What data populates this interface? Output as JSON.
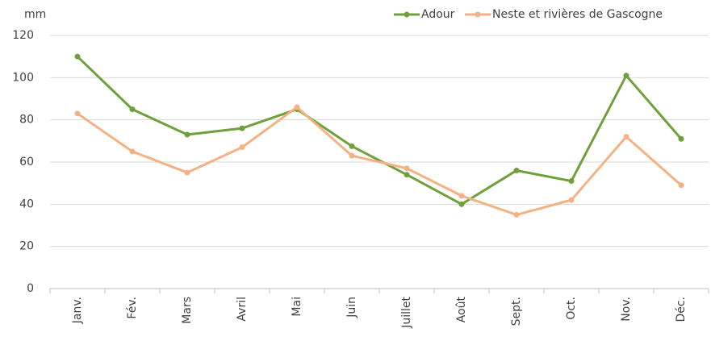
{
  "chart_data": {
    "type": "line",
    "y_label": "mm",
    "categories": [
      "Janv.",
      "Fév.",
      "Mars",
      "Avril",
      "Mai",
      "Juin",
      "Juillet",
      "Août",
      "Sept.",
      "Oct.",
      "Nov.",
      "Déc."
    ],
    "series": [
      {
        "name": "Adour",
        "color": "#70a03c",
        "values": [
          110,
          85,
          73,
          76,
          85,
          67.5,
          54,
          40,
          56,
          51,
          101,
          71
        ]
      },
      {
        "name": "Neste et rivières de Gascogne",
        "color": "#f4b183",
        "values": [
          83,
          65,
          55,
          67,
          86,
          63,
          57,
          44,
          35,
          42,
          72,
          49
        ]
      }
    ],
    "ylim": [
      0,
      120
    ],
    "yticks": [
      0,
      20,
      40,
      60,
      80,
      100,
      120
    ],
    "grid": true,
    "legend": "top-right"
  }
}
